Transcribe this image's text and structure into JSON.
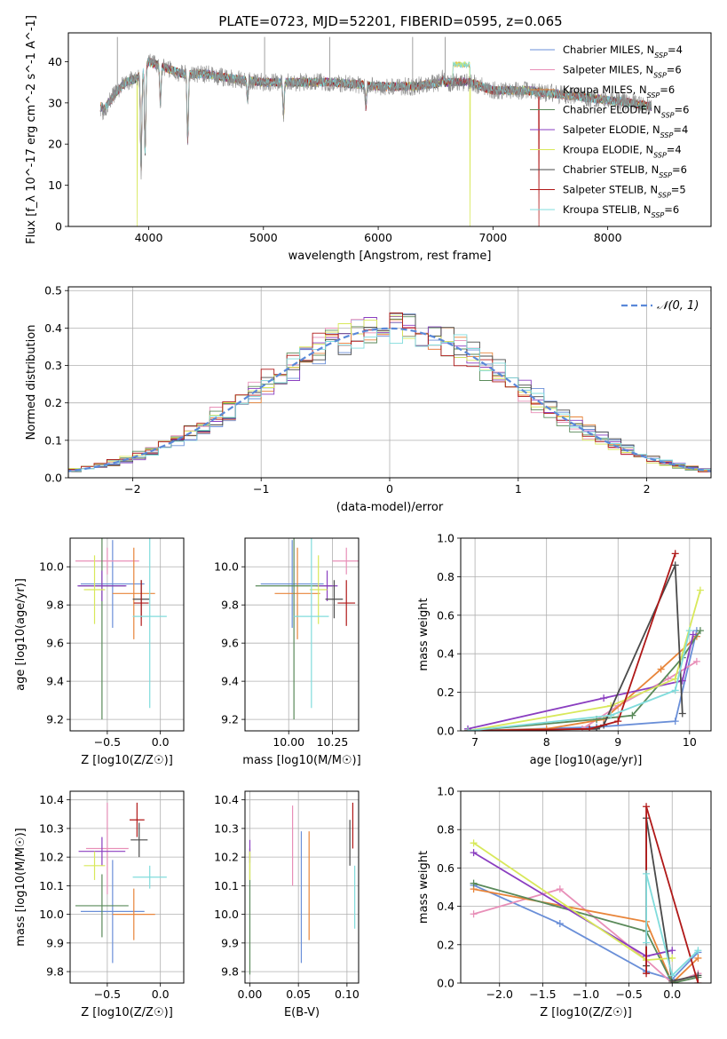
{
  "figure_title": "PLATE=0723, MJD=52201, FIBERID=0595, z=0.065",
  "models": [
    {
      "name": "Chabrier MILES",
      "nssp": "4",
      "color": "#6a8fd8"
    },
    {
      "name": "Salpeter MILES",
      "nssp": "6",
      "color": "#e88fb8"
    },
    {
      "name": "Kroupa MILES",
      "nssp": "6",
      "color": "#e8853a"
    },
    {
      "name": "Chabrier ELODIE",
      "nssp": "6",
      "color": "#5a8a5a"
    },
    {
      "name": "Salpeter ELODIE",
      "nssp": "4",
      "color": "#8a3ec0"
    },
    {
      "name": "Kroupa ELODIE",
      "nssp": "4",
      "color": "#d8e85a"
    },
    {
      "name": "Chabrier STELIB",
      "nssp": "6",
      "color": "#4a4a4a"
    },
    {
      "name": "Salpeter STELIB",
      "nssp": "5",
      "color": "#b01818"
    },
    {
      "name": "Kroupa STELIB",
      "nssp": "6",
      "color": "#80dcdc"
    }
  ],
  "chart_data": [
    {
      "type": "line",
      "id": "spectrum",
      "xlabel": "wavelength [Angstrom, rest frame]",
      "ylabel": "Flux [f_λ 10^-17 erg cm^-2 s^-1 A^-1]",
      "xlim": [
        3300,
        8900
      ],
      "ylim": [
        0,
        47
      ],
      "xticks": [
        4000,
        5000,
        6000,
        7000,
        8000
      ],
      "yticks": [
        0,
        10,
        20,
        30,
        40
      ],
      "grid": false,
      "legend": "top-right",
      "continuum": {
        "x": [
          3600,
          3700,
          3800,
          3900,
          3950,
          4000,
          4100,
          4200,
          4300,
          4500,
          4700,
          5000,
          5300,
          5600,
          6000,
          6300,
          6600,
          6800,
          7000,
          7300,
          7600,
          7900,
          8200,
          8400
        ],
        "y": [
          28,
          32,
          35,
          36,
          38,
          40,
          39,
          38,
          37,
          37,
          36,
          35,
          35,
          35,
          34,
          34,
          35,
          35,
          33,
          33,
          32,
          31,
          30,
          29
        ]
      },
      "absorption_lines": [
        {
          "x": 3934,
          "y": 13
        },
        {
          "x": 3969,
          "y": 18
        },
        {
          "x": 4102,
          "y": 30
        },
        {
          "x": 4340,
          "y": 21
        },
        {
          "x": 4861,
          "y": 31
        },
        {
          "x": 5175,
          "y": 27
        },
        {
          "x": 5893,
          "y": 29
        },
        {
          "x": 6563,
          "y": 36
        }
      ],
      "emission_spikes": [
        {
          "x": 3727,
          "y": 46
        },
        {
          "x": 5010,
          "y": 46
        },
        {
          "x": 5577,
          "y": 46
        },
        {
          "x": 6300,
          "y": 46
        },
        {
          "x": 6583,
          "y": 46
        }
      ],
      "model_dropouts": [
        {
          "model": "Kroupa ELODIE",
          "x": 3900
        },
        {
          "model": "Kroupa ELODIE",
          "x": 6800
        },
        {
          "model": "Salpeter STELIB",
          "x": 7400
        }
      ],
      "model_bump": {
        "from": 6650,
        "to": 6800,
        "y": 40
      }
    },
    {
      "type": "line",
      "id": "residual-histogram",
      "xlabel": "(data-model)/error",
      "ylabel": "Normed distribution",
      "xlim": [
        -2.5,
        2.5
      ],
      "ylim": [
        0,
        0.51
      ],
      "xticks": [
        -2,
        -1,
        0,
        1,
        2
      ],
      "yticks": [
        0.0,
        0.1,
        0.2,
        0.3,
        0.4,
        0.5
      ],
      "grid": true,
      "legend": "top-right",
      "reference_curve": "𝒩(0, 1)",
      "bin_width": 0.1
    },
    {
      "type": "scatter",
      "id": "age-vs-z",
      "xlabel": "Z [log10(Z/Z☉)]",
      "ylabel": "age  [log10(age/yr)]",
      "xlim": [
        -0.85,
        0.22
      ],
      "ylim": [
        9.14,
        10.15
      ],
      "xticks": [
        -0.5,
        0.0
      ],
      "yticks": [
        9.2,
        9.4,
        9.6,
        9.8,
        10.0
      ],
      "grid": true,
      "points": [
        {
          "model": "Chabrier MILES",
          "x": -0.45,
          "xerr": 0.3,
          "y": 9.91,
          "yerr": 0.23
        },
        {
          "model": "Salpeter MILES",
          "x": -0.5,
          "xerr": 0.3,
          "y": 10.03,
          "yerr": 0.07
        },
        {
          "model": "Kroupa MILES",
          "x": -0.25,
          "xerr": 0.2,
          "y": 9.86,
          "yerr": 0.24
        },
        {
          "model": "Chabrier ELODIE",
          "x": -0.55,
          "xerr": 0.22,
          "y": 9.9,
          "yerr": 0.7
        },
        {
          "model": "Salpeter ELODIE",
          "x": -0.55,
          "xerr": 0.23,
          "y": 9.9,
          "yerr": 0.08
        },
        {
          "model": "Kroupa ELODIE",
          "x": -0.62,
          "xerr": 0.1,
          "y": 9.88,
          "yerr": 0.18
        },
        {
          "model": "Chabrier STELIB",
          "x": -0.18,
          "xerr": 0.08,
          "y": 9.83,
          "yerr": 0.1
        },
        {
          "model": "Salpeter STELIB",
          "x": -0.18,
          "xerr": 0.07,
          "y": 9.81,
          "yerr": 0.12
        },
        {
          "model": "Kroupa STELIB",
          "x": -0.1,
          "xerr": 0.16,
          "y": 9.74,
          "yerr": 0.48
        }
      ]
    },
    {
      "type": "scatter",
      "id": "age-vs-mass",
      "xlabel": "mass [log10(M/M☉)]",
      "ylabel": "",
      "xlim": [
        9.75,
        10.4
      ],
      "ylim": [
        9.14,
        10.15
      ],
      "xticks": [
        10.0,
        10.25
      ],
      "yticks": [
        9.2,
        9.4,
        9.6,
        9.8,
        10.0
      ],
      "grid": true,
      "points": [
        {
          "model": "Chabrier MILES",
          "x": 10.02,
          "xerr": 0.18,
          "y": 9.91,
          "yerr": 0.23
        },
        {
          "model": "Salpeter MILES",
          "x": 10.33,
          "xerr": 0.08,
          "y": 10.03,
          "yerr": 0.07
        },
        {
          "model": "Kroupa MILES",
          "x": 10.05,
          "xerr": 0.13,
          "y": 9.86,
          "yerr": 0.24
        },
        {
          "model": "Chabrier ELODIE",
          "x": 10.03,
          "xerr": 0.22,
          "y": 9.9,
          "yerr": 0.7
        },
        {
          "model": "Salpeter ELODIE",
          "x": 10.22,
          "xerr": 0.06,
          "y": 9.9,
          "yerr": 0.08
        },
        {
          "model": "Kroupa ELODIE",
          "x": 10.17,
          "xerr": 0.05,
          "y": 9.88,
          "yerr": 0.18
        },
        {
          "model": "Chabrier STELIB",
          "x": 10.26,
          "xerr": 0.05,
          "y": 9.83,
          "yerr": 0.1
        },
        {
          "model": "Salpeter STELIB",
          "x": 10.33,
          "xerr": 0.05,
          "y": 9.81,
          "yerr": 0.12
        },
        {
          "model": "Kroupa STELIB",
          "x": 10.13,
          "xerr": 0.1,
          "y": 9.74,
          "yerr": 0.48
        }
      ]
    },
    {
      "type": "line",
      "id": "mass-weight-vs-age",
      "xlabel": "age  [log10(age/yr)]",
      "ylabel": "mass weight",
      "xlim": [
        6.8,
        10.3
      ],
      "ylim": [
        0,
        1.0
      ],
      "xticks": [
        7,
        8,
        9,
        10
      ],
      "yticks": [
        0.0,
        0.2,
        0.4,
        0.6,
        0.8,
        1.0
      ],
      "grid": true,
      "series": [
        {
          "model": "Chabrier MILES",
          "x": [
            6.9,
            8.7,
            9.8,
            10.1
          ],
          "y": [
            0.0,
            0.02,
            0.05,
            0.52
          ]
        },
        {
          "model": "Salpeter MILES",
          "x": [
            6.9,
            8.5,
            9.0,
            9.7,
            10.1
          ],
          "y": [
            0.0,
            0.01,
            0.13,
            0.27,
            0.36
          ]
        },
        {
          "model": "Kroupa MILES",
          "x": [
            6.9,
            8.0,
            8.8,
            9.6,
            10.1
          ],
          "y": [
            0.0,
            0.01,
            0.06,
            0.32,
            0.49
          ]
        },
        {
          "model": "Chabrier ELODIE",
          "x": [
            6.9,
            8.7,
            9.2,
            9.9,
            10.15
          ],
          "y": [
            0.0,
            0.06,
            0.08,
            0.38,
            0.52
          ]
        },
        {
          "model": "Salpeter ELODIE",
          "x": [
            6.9,
            8.8,
            9.9,
            10.05
          ],
          "y": [
            0.01,
            0.17,
            0.26,
            0.5
          ]
        },
        {
          "model": "Kroupa ELODIE",
          "x": [
            6.9,
            8.9,
            9.8,
            10.15
          ],
          "y": [
            0.0,
            0.13,
            0.27,
            0.73
          ]
        },
        {
          "model": "Chabrier STELIB",
          "x": [
            6.9,
            8.7,
            8.8,
            9.8,
            9.9
          ],
          "y": [
            0.0,
            0.01,
            0.03,
            0.86,
            0.09
          ]
        },
        {
          "model": "Salpeter STELIB",
          "x": [
            6.9,
            8.6,
            9.0,
            9.8
          ],
          "y": [
            0.0,
            0.01,
            0.05,
            0.92
          ]
        },
        {
          "model": "Kroupa STELIB",
          "x": [
            6.9,
            8.9,
            9.8,
            10.0
          ],
          "y": [
            0.0,
            0.08,
            0.21,
            0.52
          ]
        }
      ]
    },
    {
      "type": "scatter",
      "id": "mass-vs-z",
      "xlabel": "Z [log10(Z/Z☉)]",
      "ylabel": "mass [log10(M/M☉)]",
      "xlim": [
        -0.85,
        0.22
      ],
      "ylim": [
        9.76,
        10.43
      ],
      "xticks": [
        -0.5,
        0.0
      ],
      "yticks": [
        9.8,
        9.9,
        10.0,
        10.1,
        10.2,
        10.3,
        10.4
      ],
      "grid": true,
      "points": [
        {
          "model": "Chabrier MILES",
          "x": -0.45,
          "xerr": 0.3,
          "y": 10.01,
          "yerr": 0.18
        },
        {
          "model": "Salpeter MILES",
          "x": -0.5,
          "xerr": 0.2,
          "y": 10.23,
          "yerr": 0.16
        },
        {
          "model": "Kroupa MILES",
          "x": -0.25,
          "xerr": 0.2,
          "y": 10.0,
          "yerr": 0.09
        },
        {
          "model": "Chabrier ELODIE",
          "x": -0.55,
          "xerr": 0.25,
          "y": 10.03,
          "yerr": 0.11
        },
        {
          "model": "Salpeter ELODIE",
          "x": -0.55,
          "xerr": 0.22,
          "y": 10.22,
          "yerr": 0.05
        },
        {
          "model": "Kroupa ELODIE",
          "x": -0.62,
          "xerr": 0.1,
          "y": 10.17,
          "yerr": 0.05
        },
        {
          "model": "Chabrier STELIB",
          "x": -0.2,
          "xerr": 0.08,
          "y": 10.26,
          "yerr": 0.06
        },
        {
          "model": "Salpeter STELIB",
          "x": -0.22,
          "xerr": 0.07,
          "y": 10.33,
          "yerr": 0.06
        },
        {
          "model": "Kroupa STELIB",
          "x": -0.1,
          "xerr": 0.16,
          "y": 10.13,
          "yerr": 0.04
        }
      ]
    },
    {
      "type": "scatter",
      "id": "mass-vs-ebv",
      "xlabel": "E(B-V)",
      "ylabel": "",
      "xlim": [
        -0.005,
        0.112
      ],
      "ylim": [
        9.76,
        10.43
      ],
      "xticks": [
        0.0,
        0.05,
        0.1
      ],
      "yticks": [
        9.8,
        9.9,
        10.0,
        10.1,
        10.2,
        10.3,
        10.4
      ],
      "grid": true,
      "points": [
        {
          "model": "Chabrier MILES",
          "x": 0.053,
          "xerr": 0.0,
          "y": 10.06,
          "yerr": 0.23
        },
        {
          "model": "Salpeter MILES",
          "x": 0.044,
          "xerr": 0.0,
          "y": 10.24,
          "yerr": 0.14
        },
        {
          "model": "Kroupa MILES",
          "x": 0.061,
          "xerr": 0.0,
          "y": 10.1,
          "yerr": 0.19
        },
        {
          "model": "Chabrier ELODIE",
          "x": 0.0,
          "xerr": 0.0,
          "y": 10.01,
          "yerr": 0.22
        },
        {
          "model": "Salpeter ELODIE",
          "x": 0.0,
          "xerr": 0.0,
          "y": 10.22,
          "yerr": 0.04
        },
        {
          "model": "Kroupa ELODIE",
          "x": 0.0,
          "xerr": 0.0,
          "y": 10.17,
          "yerr": 0.05
        },
        {
          "model": "Chabrier STELIB",
          "x": 0.103,
          "xerr": 0.0,
          "y": 10.25,
          "yerr": 0.08
        },
        {
          "model": "Salpeter STELIB",
          "x": 0.106,
          "xerr": 0.0,
          "y": 10.31,
          "yerr": 0.08
        },
        {
          "model": "Kroupa STELIB",
          "x": 0.108,
          "xerr": 0.0,
          "y": 10.06,
          "yerr": 0.11
        }
      ]
    },
    {
      "type": "line",
      "id": "mass-weight-vs-z",
      "xlabel": "Z [log10(Z/Z☉)]",
      "ylabel": "mass weight",
      "xlim": [
        -2.45,
        0.45
      ],
      "ylim": [
        0,
        1.0
      ],
      "xticks": [
        -2.0,
        -1.5,
        -1.0,
        -0.5,
        0.0
      ],
      "yticks": [
        0.0,
        0.2,
        0.4,
        0.6,
        0.8,
        1.0
      ],
      "grid": true,
      "series": [
        {
          "model": "Chabrier MILES",
          "x": [
            -2.3,
            -1.3,
            -0.3,
            0.0,
            0.3
          ],
          "y": [
            0.51,
            0.31,
            0.06,
            0.02,
            0.16
          ]
        },
        {
          "model": "Salpeter MILES",
          "x": [
            -2.3,
            -1.3,
            -0.3,
            0.0,
            0.3
          ],
          "y": [
            0.36,
            0.49,
            0.12,
            0.0,
            0.05
          ]
        },
        {
          "model": "Kroupa MILES",
          "x": [
            -2.3,
            -0.3,
            0.0,
            0.3
          ],
          "y": [
            0.49,
            0.32,
            0.0,
            0.13
          ]
        },
        {
          "model": "Chabrier ELODIE",
          "x": [
            -2.3,
            -0.3,
            0.0,
            0.3
          ],
          "y": [
            0.52,
            0.27,
            0.0,
            0.03
          ]
        },
        {
          "model": "Salpeter ELODIE",
          "x": [
            -2.3,
            -0.3,
            0.0
          ],
          "y": [
            0.68,
            0.14,
            0.17
          ]
        },
        {
          "model": "Kroupa ELODIE",
          "x": [
            -2.3,
            -0.3,
            0.0
          ],
          "y": [
            0.73,
            0.12,
            0.13
          ]
        },
        {
          "model": "Chabrier STELIB",
          "x": [
            -0.3,
            -0.3,
            0.0,
            0.3
          ],
          "y": [
            0.09,
            0.86,
            0.01,
            0.04
          ]
        },
        {
          "model": "Salpeter STELIB",
          "x": [
            -0.3,
            -0.3,
            0.3
          ],
          "y": [
            0.05,
            0.92,
            0.0
          ]
        },
        {
          "model": "Kroupa STELIB",
          "x": [
            -0.3,
            -0.3,
            0.0,
            0.3
          ],
          "y": [
            0.21,
            0.57,
            0.04,
            0.17
          ]
        }
      ]
    }
  ]
}
